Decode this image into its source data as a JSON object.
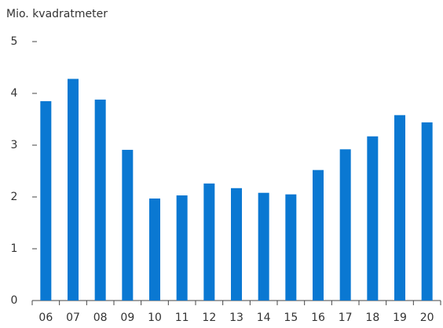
{
  "chart_data": {
    "type": "bar",
    "y_label": "Mio. kvadratmeter",
    "categories": [
      "06",
      "07",
      "08",
      "09",
      "10",
      "11",
      "12",
      "13",
      "14",
      "15",
      "16",
      "17",
      "18",
      "19",
      "20"
    ],
    "values": [
      3.85,
      4.28,
      3.88,
      2.91,
      1.97,
      2.03,
      2.26,
      2.17,
      2.08,
      2.05,
      2.52,
      2.92,
      3.17,
      3.58,
      3.44
    ],
    "color": "#0a78d2",
    "ylim": [
      0,
      5
    ],
    "yticks": [
      0,
      1,
      2,
      3,
      4,
      5
    ],
    "grid": false
  }
}
